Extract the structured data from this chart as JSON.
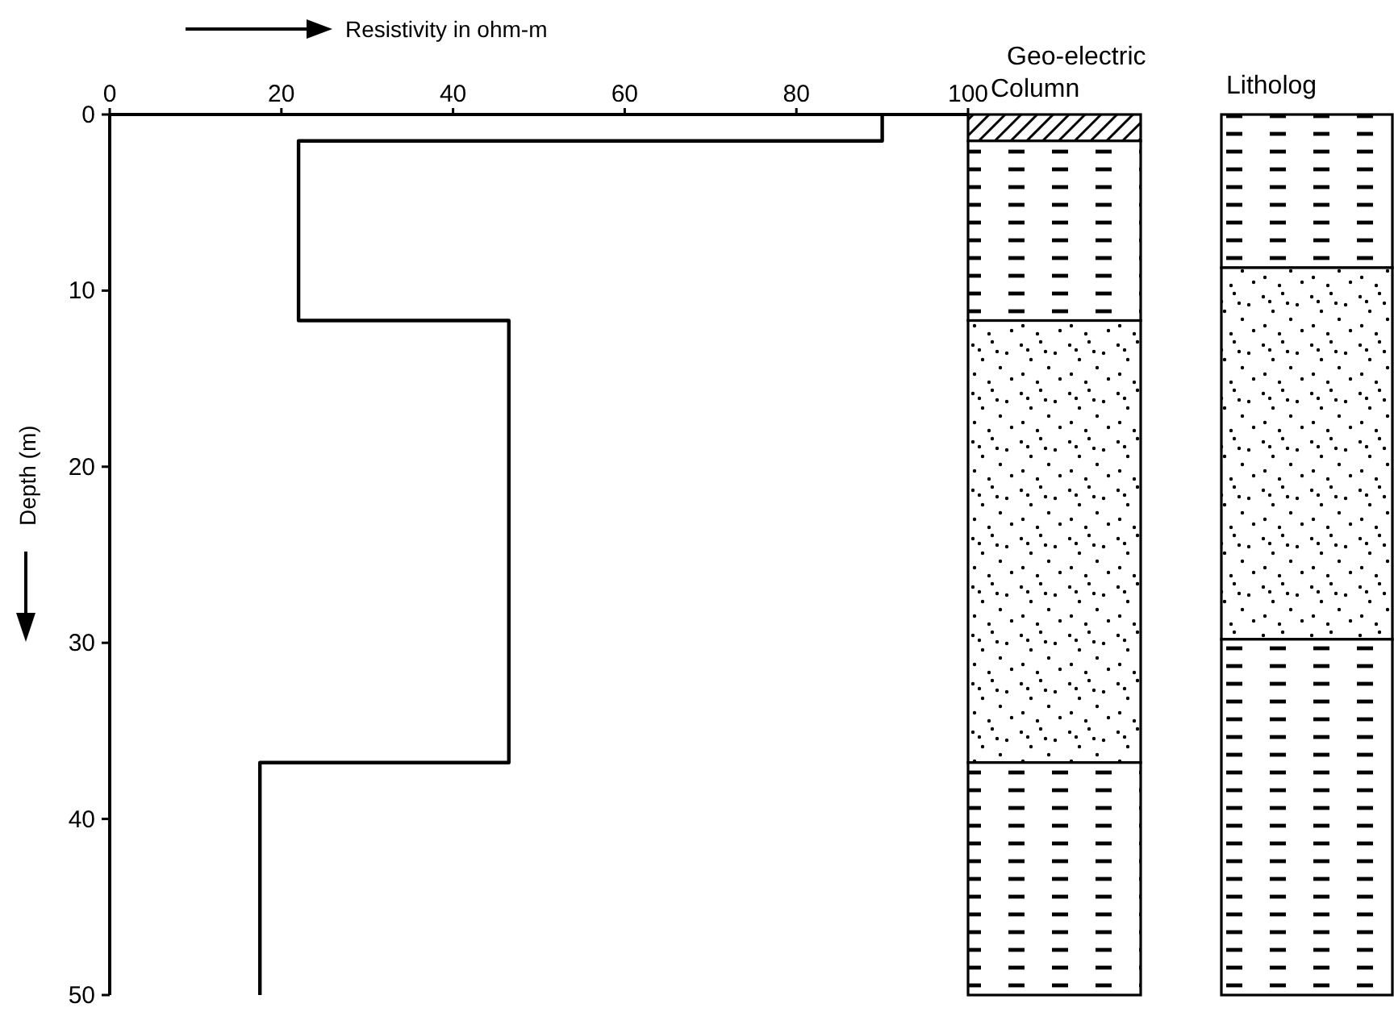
{
  "chart_data": {
    "type": "line",
    "xlabel": "Resistivity in ohm-m",
    "ylabel": "Depth (m)",
    "xlim": [
      0,
      100
    ],
    "xticks": [
      0,
      20,
      40,
      60,
      80,
      100
    ],
    "ylim": [
      50,
      0
    ],
    "yticks": [
      0,
      10,
      20,
      30,
      40,
      50
    ],
    "series": [
      {
        "color": "#000000",
        "x": [
          90,
          90,
          22,
          22,
          46.5,
          46.5,
          17.5,
          17.5
        ],
        "values": [
          0,
          1.5,
          1.5,
          11.7,
          11.7,
          36.8,
          36.8,
          50
        ]
      }
    ],
    "annotations": [
      "Geo-electric Column",
      "Litholog"
    ],
    "grid": false,
    "marker": "none",
    "line_style": "solid"
  }
}
